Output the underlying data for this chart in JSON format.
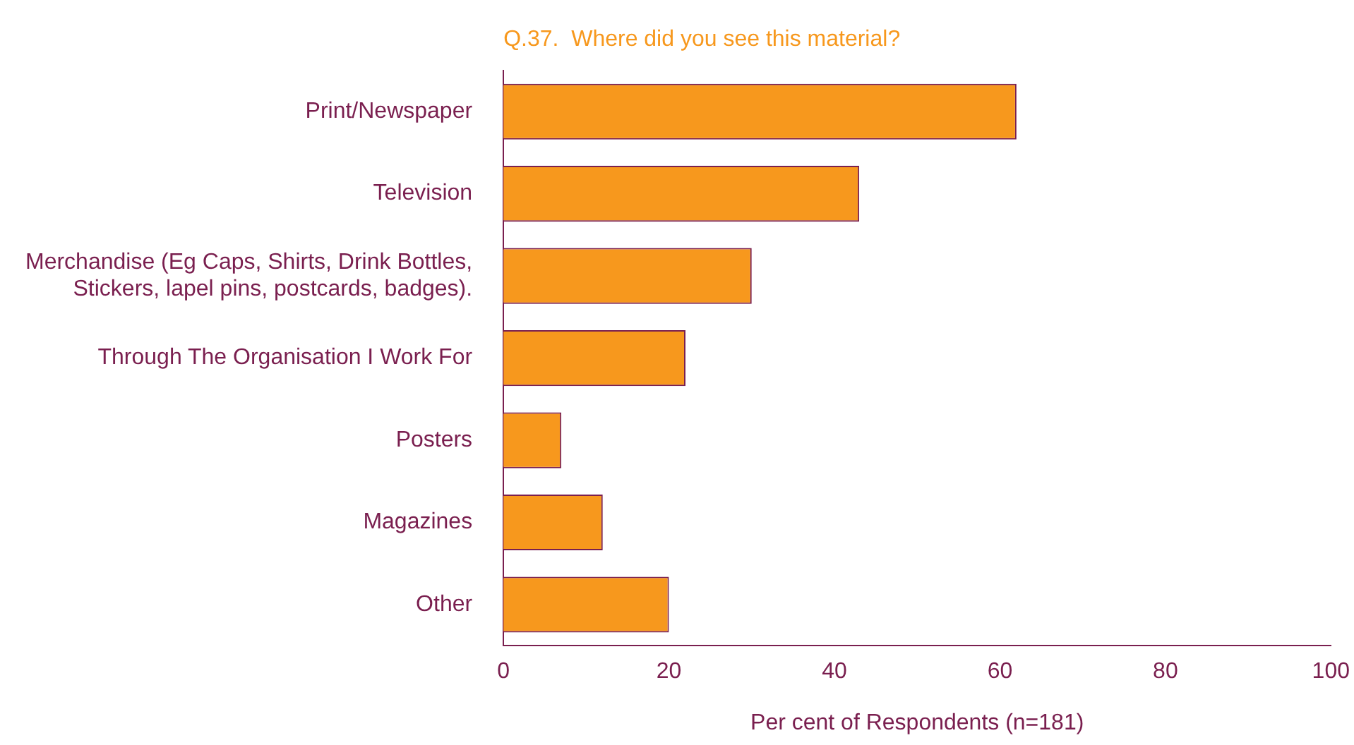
{
  "chart_data": {
    "type": "bar",
    "orientation": "horizontal",
    "title": "Q.37.  Where did you see this material?",
    "xlabel": "Per cent of Respondents (n=181)",
    "categories": [
      "Print/Newspaper",
      "Television",
      "Merchandise (Eg Caps, Shirts, Drink Bottles, Stickers, lapel pins, postcards, badges).",
      "Through The Organisation I Work For",
      "Posters",
      "Magazines",
      "Other"
    ],
    "values": [
      62,
      43,
      30,
      22,
      7,
      12,
      20
    ],
    "color": "#f7981d",
    "xlim": [
      0,
      100
    ],
    "xticks": [
      0,
      20,
      40,
      60,
      80,
      100
    ],
    "grid": false
  }
}
